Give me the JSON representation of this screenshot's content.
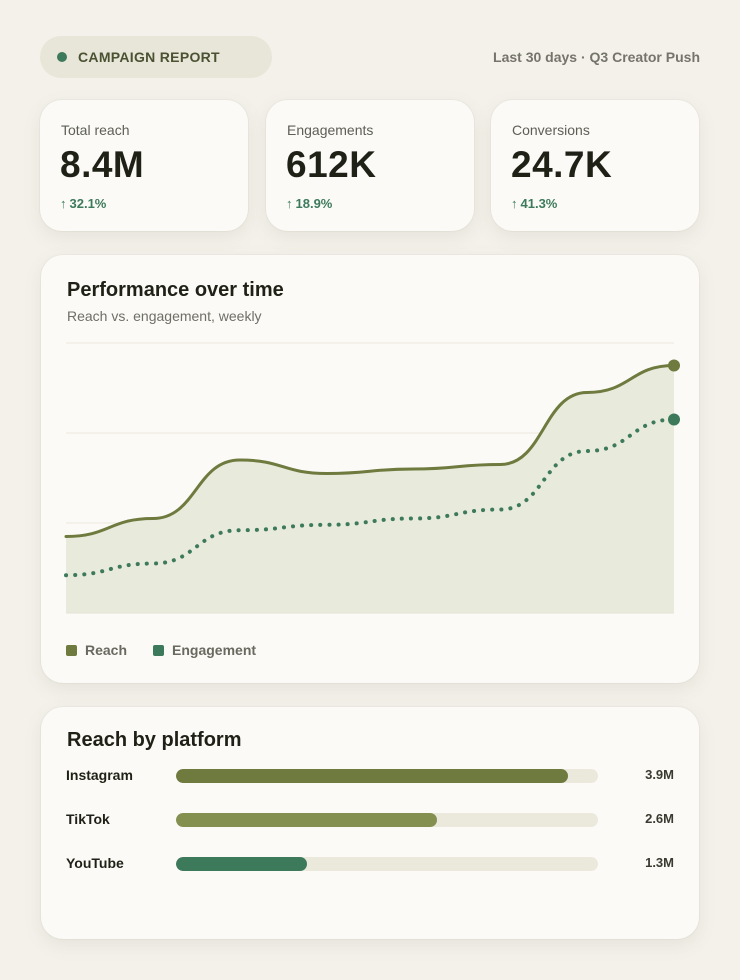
{
  "header": {
    "badge": "CAMPAIGN REPORT",
    "meta": "Last 30 days · Q3 Creator Push"
  },
  "kpis": [
    {
      "label": "Total reach",
      "value": "8.4M",
      "delta": "32.1%"
    },
    {
      "label": "Engagements",
      "value": "612K",
      "delta": "18.9%"
    },
    {
      "label": "Conversions",
      "value": "24.7K",
      "delta": "41.3%"
    }
  ],
  "kpi_arrow": "↑",
  "chart_data": {
    "type": "line",
    "title": "Performance over time",
    "subtitle": "Reach vs. engagement, weekly",
    "x": [
      0,
      1,
      2,
      3,
      4,
      5,
      6,
      7
    ],
    "ylim": [
      0,
      3
    ],
    "grid": true,
    "legend_position": "bottom-left",
    "series": [
      {
        "name": "Reach",
        "color": "#6e7a3e",
        "style": "solid",
        "values": [
          0.85,
          1.05,
          1.7,
          1.55,
          1.6,
          1.65,
          2.45,
          2.75
        ]
      },
      {
        "name": "Engagement",
        "color": "#3d7a5b",
        "style": "dotted",
        "values": [
          0.42,
          0.55,
          0.92,
          0.98,
          1.05,
          1.15,
          1.8,
          2.15
        ]
      }
    ]
  },
  "platforms": {
    "title": "Reach by platform",
    "max": 4.2,
    "items": [
      {
        "label": "Instagram",
        "value": 3.9,
        "display": "3.9M",
        "color": "#6e7a3e"
      },
      {
        "label": "TikTok",
        "value": 2.6,
        "display": "2.6M",
        "color": "#84904f"
      },
      {
        "label": "YouTube",
        "value": 1.3,
        "display": "1.3M",
        "color": "#3d7a5b"
      }
    ]
  }
}
